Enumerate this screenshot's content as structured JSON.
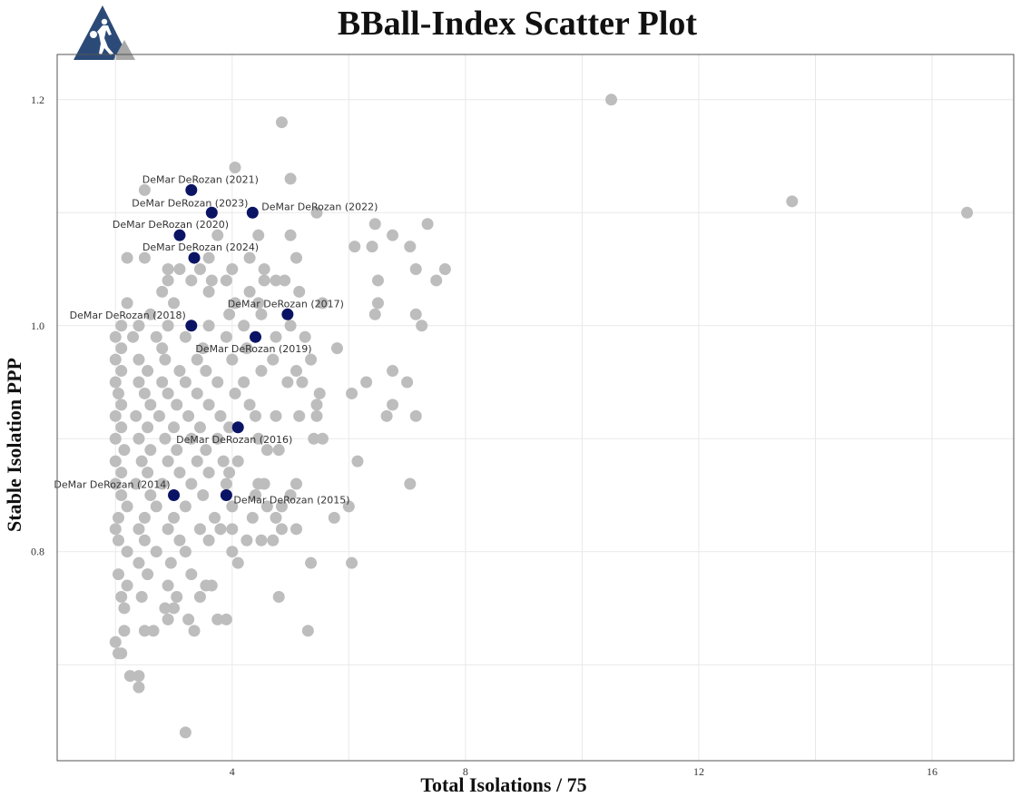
{
  "colors": {
    "background_point": "#bdbdbd",
    "highlight_point": "#0b1464",
    "grid": "#e9e9e9",
    "panel_border": "#555555",
    "logo_blue": "#2b4a78",
    "logo_gray": "#a8a8a8"
  },
  "logo": {
    "icon": "basketball-player-icon"
  },
  "chart_data": {
    "type": "scatter",
    "title": "BBall-Index Scatter Plot",
    "xlabel": "Total Isolations / 75",
    "ylabel": "Stable Isolation PPP",
    "xlim": [
      1.0,
      17.4
    ],
    "ylim": [
      0.615,
      1.24
    ],
    "xticks": [
      4,
      8,
      12,
      16
    ],
    "yticks": [
      0.8,
      1.0,
      1.2
    ],
    "grid": true,
    "highlighted": [
      {
        "label": "DeMar DeRozan (2014)",
        "x": 3.0,
        "y": 0.85
      },
      {
        "label": "DeMar DeRozan (2015)",
        "x": 3.9,
        "y": 0.85
      },
      {
        "label": "DeMar DeRozan (2016)",
        "x": 4.1,
        "y": 0.91
      },
      {
        "label": "DeMar DeRozan (2017)",
        "x": 4.95,
        "y": 1.01
      },
      {
        "label": "DeMar DeRozan (2018)",
        "x": 3.3,
        "y": 1.0
      },
      {
        "label": "DeMar DeRozan (2019)",
        "x": 4.4,
        "y": 0.99
      },
      {
        "label": "DeMar DeRozan (2020)",
        "x": 3.1,
        "y": 1.08
      },
      {
        "label": "DeMar DeRozan (2021)",
        "x": 3.3,
        "y": 1.12
      },
      {
        "label": "DeMar DeRozan (2022)",
        "x": 4.35,
        "y": 1.1
      },
      {
        "label": "DeMar DeRozan (2023)",
        "x": 3.65,
        "y": 1.1
      },
      {
        "label": "DeMar DeRozan (2024)",
        "x": 3.35,
        "y": 1.06
      }
    ],
    "points": [
      [
        10.5,
        1.2
      ],
      [
        13.6,
        1.11
      ],
      [
        16.6,
        1.1
      ],
      [
        4.85,
        1.18
      ],
      [
        4.05,
        1.14
      ],
      [
        5.0,
        1.13
      ],
      [
        2.5,
        1.12
      ],
      [
        5.45,
        1.1
      ],
      [
        6.45,
        1.09
      ],
      [
        7.35,
        1.09
      ],
      [
        4.45,
        1.08
      ],
      [
        5.0,
        1.08
      ],
      [
        6.75,
        1.08
      ],
      [
        3.75,
        1.08
      ],
      [
        6.1,
        1.07
      ],
      [
        6.4,
        1.07
      ],
      [
        7.05,
        1.07
      ],
      [
        2.2,
        1.06
      ],
      [
        2.5,
        1.06
      ],
      [
        3.6,
        1.06
      ],
      [
        5.1,
        1.06
      ],
      [
        4.3,
        1.06
      ],
      [
        7.15,
        1.05
      ],
      [
        7.65,
        1.05
      ],
      [
        3.45,
        1.05
      ],
      [
        4.0,
        1.05
      ],
      [
        4.55,
        1.05
      ],
      [
        2.9,
        1.05
      ],
      [
        3.1,
        1.05
      ],
      [
        7.5,
        1.04
      ],
      [
        6.5,
        1.04
      ],
      [
        4.55,
        1.04
      ],
      [
        4.75,
        1.04
      ],
      [
        4.9,
        1.04
      ],
      [
        3.65,
        1.04
      ],
      [
        3.9,
        1.04
      ],
      [
        3.3,
        1.04
      ],
      [
        2.9,
        1.04
      ],
      [
        5.15,
        1.03
      ],
      [
        3.6,
        1.03
      ],
      [
        4.3,
        1.03
      ],
      [
        2.8,
        1.03
      ],
      [
        2.2,
        1.02
      ],
      [
        4.45,
        1.02
      ],
      [
        5.55,
        1.02
      ],
      [
        6.5,
        1.02
      ],
      [
        4.05,
        1.02
      ],
      [
        3.0,
        1.02
      ],
      [
        7.15,
        1.01
      ],
      [
        6.45,
        1.01
      ],
      [
        2.6,
        1.01
      ],
      [
        3.95,
        1.01
      ],
      [
        4.5,
        1.01
      ],
      [
        2.1,
        1.0
      ],
      [
        2.4,
        1.0
      ],
      [
        2.9,
        1.0
      ],
      [
        3.6,
        1.0
      ],
      [
        4.2,
        1.0
      ],
      [
        5.0,
        1.0
      ],
      [
        7.25,
        1.0
      ],
      [
        2.0,
        0.99
      ],
      [
        2.3,
        0.99
      ],
      [
        2.7,
        0.99
      ],
      [
        3.2,
        0.99
      ],
      [
        3.9,
        0.99
      ],
      [
        5.25,
        0.99
      ],
      [
        4.75,
        0.99
      ],
      [
        2.1,
        0.98
      ],
      [
        2.8,
        0.98
      ],
      [
        3.5,
        0.98
      ],
      [
        4.25,
        0.98
      ],
      [
        5.8,
        0.98
      ],
      [
        2.0,
        0.97
      ],
      [
        2.4,
        0.97
      ],
      [
        2.85,
        0.97
      ],
      [
        3.4,
        0.97
      ],
      [
        4.0,
        0.97
      ],
      [
        4.7,
        0.97
      ],
      [
        5.35,
        0.97
      ],
      [
        2.1,
        0.96
      ],
      [
        2.55,
        0.96
      ],
      [
        3.1,
        0.96
      ],
      [
        3.55,
        0.96
      ],
      [
        4.5,
        0.96
      ],
      [
        5.1,
        0.96
      ],
      [
        6.75,
        0.96
      ],
      [
        2.0,
        0.95
      ],
      [
        2.4,
        0.95
      ],
      [
        2.8,
        0.95
      ],
      [
        3.2,
        0.95
      ],
      [
        3.75,
        0.95
      ],
      [
        4.2,
        0.95
      ],
      [
        4.95,
        0.95
      ],
      [
        5.2,
        0.95
      ],
      [
        6.3,
        0.95
      ],
      [
        7.0,
        0.95
      ],
      [
        2.05,
        0.94
      ],
      [
        2.5,
        0.94
      ],
      [
        2.9,
        0.94
      ],
      [
        3.4,
        0.94
      ],
      [
        4.05,
        0.94
      ],
      [
        5.5,
        0.94
      ],
      [
        6.05,
        0.94
      ],
      [
        2.1,
        0.93
      ],
      [
        2.6,
        0.93
      ],
      [
        3.05,
        0.93
      ],
      [
        3.6,
        0.93
      ],
      [
        4.3,
        0.93
      ],
      [
        5.45,
        0.93
      ],
      [
        6.75,
        0.93
      ],
      [
        2.0,
        0.92
      ],
      [
        2.35,
        0.92
      ],
      [
        2.75,
        0.92
      ],
      [
        3.25,
        0.92
      ],
      [
        3.8,
        0.92
      ],
      [
        4.4,
        0.92
      ],
      [
        4.75,
        0.92
      ],
      [
        5.15,
        0.92
      ],
      [
        5.45,
        0.92
      ],
      [
        6.65,
        0.92
      ],
      [
        7.15,
        0.92
      ],
      [
        2.1,
        0.91
      ],
      [
        2.55,
        0.91
      ],
      [
        3.0,
        0.91
      ],
      [
        3.45,
        0.91
      ],
      [
        3.95,
        0.91
      ],
      [
        2.0,
        0.9
      ],
      [
        2.4,
        0.9
      ],
      [
        2.85,
        0.9
      ],
      [
        3.3,
        0.9
      ],
      [
        3.75,
        0.9
      ],
      [
        4.45,
        0.9
      ],
      [
        5.4,
        0.9
      ],
      [
        5.55,
        0.9
      ],
      [
        2.15,
        0.89
      ],
      [
        2.6,
        0.89
      ],
      [
        3.05,
        0.89
      ],
      [
        3.55,
        0.89
      ],
      [
        4.6,
        0.89
      ],
      [
        4.8,
        0.89
      ],
      [
        2.0,
        0.88
      ],
      [
        2.45,
        0.88
      ],
      [
        2.9,
        0.88
      ],
      [
        3.4,
        0.88
      ],
      [
        3.85,
        0.88
      ],
      [
        4.1,
        0.88
      ],
      [
        6.15,
        0.88
      ],
      [
        2.1,
        0.87
      ],
      [
        2.55,
        0.87
      ],
      [
        3.1,
        0.87
      ],
      [
        3.6,
        0.87
      ],
      [
        3.95,
        0.87
      ],
      [
        2.0,
        0.86
      ],
      [
        2.35,
        0.86
      ],
      [
        2.8,
        0.86
      ],
      [
        3.3,
        0.86
      ],
      [
        3.9,
        0.86
      ],
      [
        4.45,
        0.86
      ],
      [
        4.55,
        0.86
      ],
      [
        5.1,
        0.86
      ],
      [
        7.05,
        0.86
      ],
      [
        2.1,
        0.85
      ],
      [
        2.6,
        0.85
      ],
      [
        3.5,
        0.85
      ],
      [
        4.4,
        0.85
      ],
      [
        5.0,
        0.85
      ],
      [
        2.2,
        0.84
      ],
      [
        2.7,
        0.84
      ],
      [
        3.2,
        0.84
      ],
      [
        4.0,
        0.84
      ],
      [
        4.6,
        0.84
      ],
      [
        4.85,
        0.84
      ],
      [
        6.0,
        0.84
      ],
      [
        2.05,
        0.83
      ],
      [
        2.5,
        0.83
      ],
      [
        3.0,
        0.83
      ],
      [
        3.7,
        0.83
      ],
      [
        4.35,
        0.83
      ],
      [
        4.75,
        0.83
      ],
      [
        5.75,
        0.83
      ],
      [
        2.0,
        0.82
      ],
      [
        2.4,
        0.82
      ],
      [
        2.9,
        0.82
      ],
      [
        3.45,
        0.82
      ],
      [
        3.8,
        0.82
      ],
      [
        4.0,
        0.82
      ],
      [
        4.85,
        0.82
      ],
      [
        5.1,
        0.82
      ],
      [
        2.05,
        0.81
      ],
      [
        2.5,
        0.81
      ],
      [
        3.1,
        0.81
      ],
      [
        3.6,
        0.81
      ],
      [
        4.25,
        0.81
      ],
      [
        4.5,
        0.81
      ],
      [
        4.7,
        0.81
      ],
      [
        2.2,
        0.8
      ],
      [
        2.7,
        0.8
      ],
      [
        3.2,
        0.8
      ],
      [
        4.0,
        0.8
      ],
      [
        2.4,
        0.79
      ],
      [
        2.95,
        0.79
      ],
      [
        4.1,
        0.79
      ],
      [
        5.35,
        0.79
      ],
      [
        6.05,
        0.79
      ],
      [
        2.05,
        0.78
      ],
      [
        2.55,
        0.78
      ],
      [
        3.3,
        0.78
      ],
      [
        2.2,
        0.77
      ],
      [
        2.9,
        0.77
      ],
      [
        3.55,
        0.77
      ],
      [
        3.65,
        0.77
      ],
      [
        2.1,
        0.76
      ],
      [
        2.45,
        0.76
      ],
      [
        3.05,
        0.76
      ],
      [
        3.45,
        0.76
      ],
      [
        4.8,
        0.76
      ],
      [
        2.15,
        0.75
      ],
      [
        2.85,
        0.75
      ],
      [
        3.0,
        0.75
      ],
      [
        2.9,
        0.74
      ],
      [
        3.25,
        0.74
      ],
      [
        3.75,
        0.74
      ],
      [
        3.9,
        0.74
      ],
      [
        2.15,
        0.73
      ],
      [
        2.5,
        0.73
      ],
      [
        2.65,
        0.73
      ],
      [
        3.35,
        0.73
      ],
      [
        5.3,
        0.73
      ],
      [
        2.0,
        0.72
      ],
      [
        2.05,
        0.71
      ],
      [
        2.1,
        0.71
      ],
      [
        2.25,
        0.69
      ],
      [
        2.4,
        0.69
      ],
      [
        2.4,
        0.68
      ],
      [
        3.2,
        0.64
      ]
    ]
  }
}
